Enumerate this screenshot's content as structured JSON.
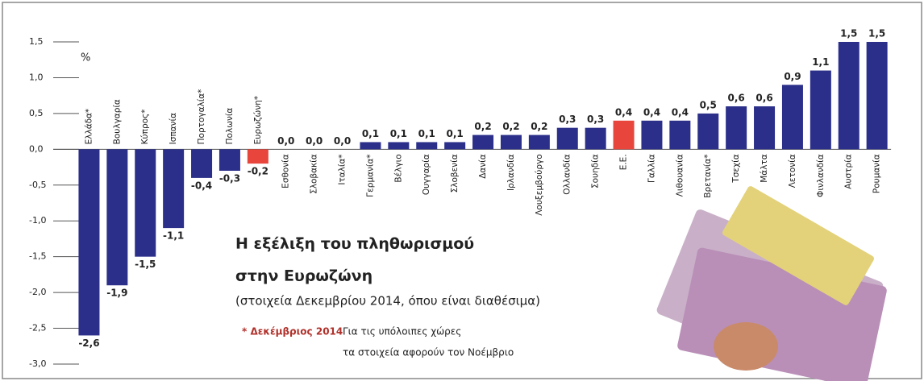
{
  "chart_data": {
    "type": "bar",
    "title": "Η εξέλιξη του πληθωρισμού",
    "title_line2": "στην Ευρωζώνη",
    "subtitle": "(στοιχεία Δεκεμβρίου 2014, όπου είναι διαθέσιμα)",
    "note_bold": "* Δεκέμβριος 2014",
    "note_line1": "Για τις υπόλοιπες χώρες",
    "note_line2": "τα στοιχεία αφορούν τον Νοέμβριο",
    "y_unit": "%",
    "categories": [
      "Ελλάδα*",
      "Βουλγαρία",
      "Κύπρος*",
      "Ισπανία",
      "Πορτογαλία*",
      "Πολωνία",
      "Ευρωζώνη*",
      "Εσθονία",
      "Σλοβακία",
      "Ιταλία*",
      "Γερμανία*",
      "Βέλγιο",
      "Ουγγαρία",
      "Σλοβενία",
      "Δανία",
      "Ιρλανδία",
      "Λουξεμβούργο",
      "Ολλανδία",
      "Σουηδία",
      "Ε.Ε.",
      "Γαλλία",
      "Λιθουανία",
      "Βρετανία*",
      "Τσεχία",
      "Μάλτα",
      "Λετονία",
      "Φινλανδία",
      "Αυστρία",
      "Ρουμανία"
    ],
    "values": [
      -2.6,
      -1.9,
      -1.5,
      -1.1,
      -0.4,
      -0.3,
      -0.2,
      0.0,
      0.0,
      0.0,
      0.1,
      0.1,
      0.1,
      0.1,
      0.2,
      0.2,
      0.2,
      0.3,
      0.3,
      0.4,
      0.4,
      0.4,
      0.5,
      0.6,
      0.6,
      0.9,
      1.1,
      1.5,
      1.5
    ],
    "value_labels": [
      "-2,6",
      "-1,9",
      "-1,5",
      "-1,1",
      "-0,4",
      "-0,3",
      "-0,2",
      "0,0",
      "0,0",
      "0,0",
      "0,1",
      "0,1",
      "0,1",
      "0,1",
      "0,2",
      "0,2",
      "0,2",
      "0,3",
      "0,3",
      "0,4",
      "0,4",
      "0,4",
      "0,5",
      "0,6",
      "0,6",
      "0,9",
      "1,1",
      "1,5",
      "1,5"
    ],
    "colors": [
      "#2b2f8a",
      "#2b2f8a",
      "#2b2f8a",
      "#2b2f8a",
      "#2b2f8a",
      "#2b2f8a",
      "#e8453c",
      "#2b2f8a",
      "#2b2f8a",
      "#2b2f8a",
      "#2b2f8a",
      "#2b2f8a",
      "#2b2f8a",
      "#2b2f8a",
      "#2b2f8a",
      "#2b2f8a",
      "#2b2f8a",
      "#2b2f8a",
      "#2b2f8a",
      "#e8453c",
      "#2b2f8a",
      "#2b2f8a",
      "#2b2f8a",
      "#2b2f8a",
      "#2b2f8a",
      "#2b2f8a",
      "#2b2f8a",
      "#2b2f8a",
      "#2b2f8a"
    ],
    "ylim": [
      -3.0,
      1.5
    ],
    "yticks": [
      {
        "value": 1.5,
        "label": "1,5"
      },
      {
        "value": 1.0,
        "label": "1,0"
      },
      {
        "value": 0.5,
        "label": "0,5"
      },
      {
        "value": 0.0,
        "label": "0,0"
      },
      {
        "value": -0.5,
        "label": "-0,5"
      },
      {
        "value": -1.0,
        "label": "-1,0"
      },
      {
        "value": -1.5,
        "label": "-1,5"
      },
      {
        "value": -2.0,
        "label": "-2,0"
      },
      {
        "value": -2.5,
        "label": "-2,5"
      },
      {
        "value": -3.0,
        "label": "-3,0"
      }
    ]
  }
}
